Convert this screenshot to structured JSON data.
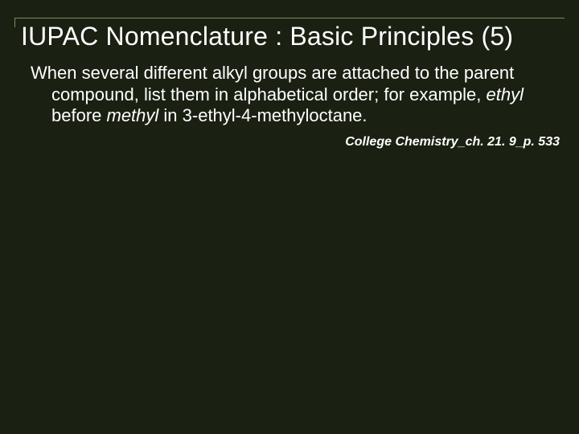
{
  "colors": {
    "background": "#1a2012",
    "text": "#ffffff",
    "rule": "#7d8a5a"
  },
  "typography": {
    "title_fontsize": 32,
    "body_fontsize": 22,
    "citation_fontsize": 16,
    "font_family": "Arial"
  },
  "title": "IUPAC Nomenclature : Basic Principles (5)",
  "body": {
    "pre": "When several different alkyl groups are attached to the parent compound, list them in alphabetical order; for example, ",
    "ital1": "ethyl",
    "mid": " before ",
    "ital2": "methyl",
    "post": " in 3-ethyl-4-methyloctane."
  },
  "citation": "College Chemistry_ch. 21. 9_p. 533"
}
